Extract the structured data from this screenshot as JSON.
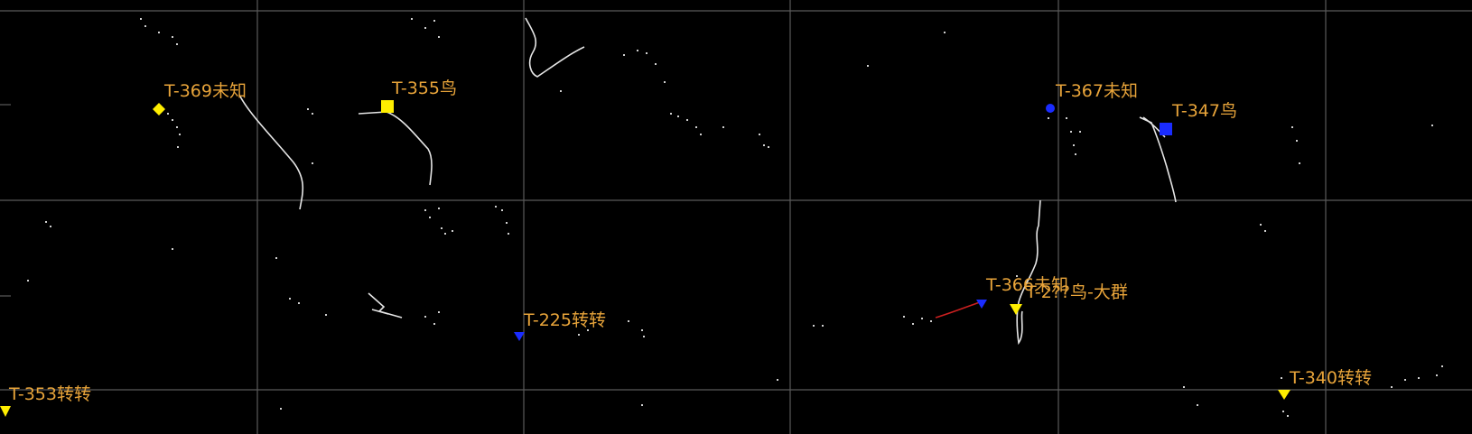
{
  "colors": {
    "background": "#000000",
    "grid": "#5a5a5a",
    "label": "#e8a43a",
    "track": "#e6e6e6",
    "clutter": "#d0d0d0",
    "yellow": "#ffee00",
    "blue": "#1a2cff",
    "red": "#cc2020"
  },
  "targets": [
    {
      "id": "t369",
      "label": "T-369未知",
      "symbol": "diamond",
      "color": "yellow"
    },
    {
      "id": "t355",
      "label": "T-355鸟",
      "symbol": "square",
      "color": "yellow"
    },
    {
      "id": "t367",
      "label": "T-367未知",
      "symbol": "dot",
      "color": "blue"
    },
    {
      "id": "t347",
      "label": "T-347鸟",
      "symbol": "square",
      "color": "blue"
    },
    {
      "id": "t366",
      "label": "T-366未知",
      "symbol": "triangle",
      "color": "blue"
    },
    {
      "id": "t_big",
      "label": "T-2??鸟-大群",
      "symbol": "triangle",
      "color": "yellow"
    },
    {
      "id": "t225",
      "label": "T-225转转",
      "symbol": "triangle",
      "color": "blue"
    },
    {
      "id": "t353",
      "label": "T-353转转",
      "symbol": "triangle",
      "color": "yellow"
    },
    {
      "id": "t340",
      "label": "T-340转转",
      "symbol": "triangle",
      "color": "yellow"
    }
  ]
}
